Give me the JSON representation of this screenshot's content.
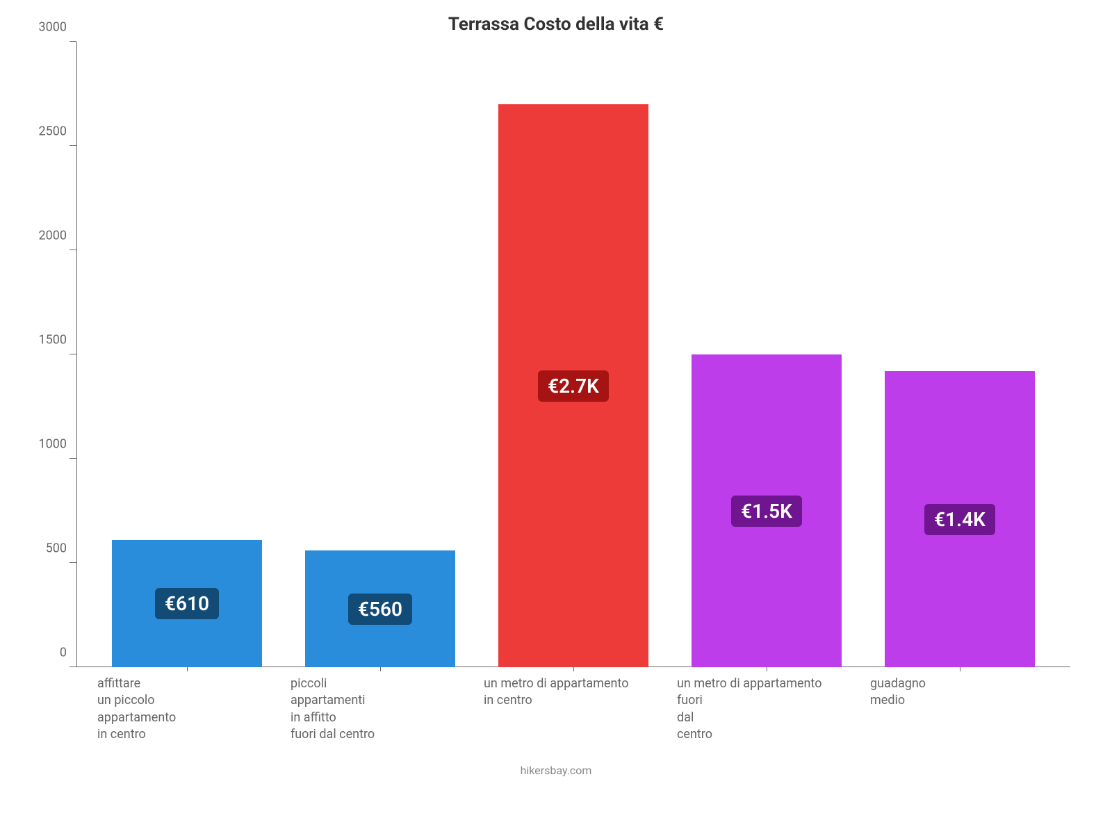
{
  "chart": {
    "type": "bar",
    "title": "Terrassa Costo della vita €",
    "title_fontsize": 26,
    "title_color": "#333333",
    "background_color": "#ffffff",
    "axis_color": "#666666",
    "ylim": [
      0,
      3000
    ],
    "ytick_step": 500,
    "yticks": [
      0,
      500,
      1000,
      1500,
      2000,
      2500,
      3000
    ],
    "tick_label_fontsize": 18,
    "tick_label_color": "#666666",
    "bar_width": 0.78,
    "badge_fontsize": 28,
    "badge_radius": 6,
    "x_label_fontsize": 18,
    "footer_text": "hikersbay.com",
    "footer_fontsize": 16,
    "footer_color": "#888888",
    "bars": [
      {
        "category": "affittare\nun piccolo\nappartamento\nin centro",
        "value": 610,
        "display": "€610",
        "bar_color": "#2a8ddc",
        "badge_bg": "#134b77"
      },
      {
        "category": "piccoli\nappartamenti\nin affitto\nfuori dal centro",
        "value": 560,
        "display": "€560",
        "bar_color": "#2a8ddc",
        "badge_bg": "#134b77"
      },
      {
        "category": "un metro di appartamento\nin centro",
        "value": 2700,
        "display": "€2.7K",
        "bar_color": "#ec3b38",
        "badge_bg": "#a51412"
      },
      {
        "category": "un metro di appartamento\nfuori\ndal\ncentro",
        "value": 1500,
        "display": "€1.5K",
        "bar_color": "#bd3deb",
        "badge_bg": "#6f1590"
      },
      {
        "category": "guadagno\nmedio",
        "value": 1420,
        "display": "€1.4K",
        "bar_color": "#bd3deb",
        "badge_bg": "#6f1590"
      }
    ]
  }
}
